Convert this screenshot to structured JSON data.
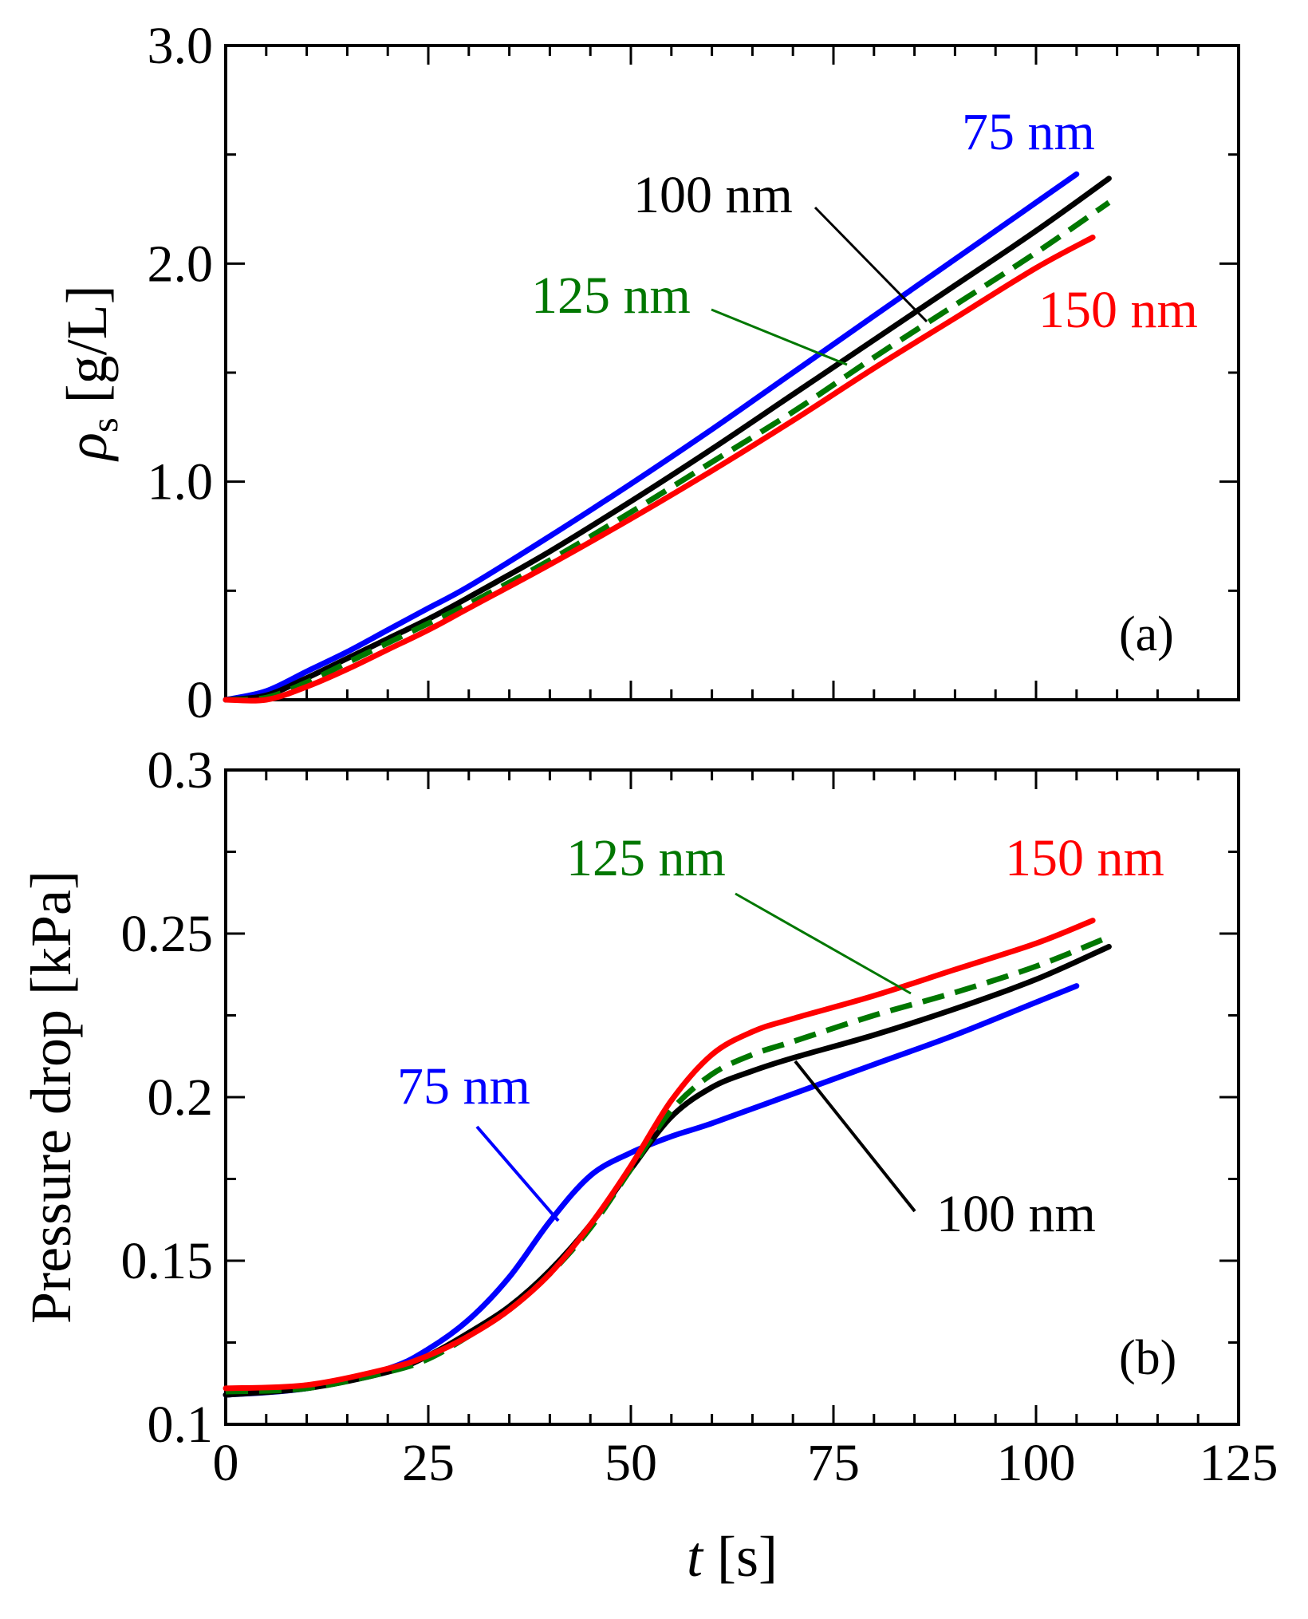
{
  "chart_data": [
    {
      "type": "line",
      "panel_tag": "(a)",
      "ylabel_symbol": "ρ",
      "ylabel_sub": "s",
      "ylabel_unit": " [g/L]",
      "xlim": [
        0,
        125
      ],
      "ylim": [
        0,
        3.0
      ],
      "yticks": [
        0,
        1.0,
        2.0,
        3.0
      ],
      "ytick_labels": [
        "0",
        "1.0",
        "2.0",
        "3.0"
      ],
      "series": [
        {
          "name": "75 nm",
          "color": "#0000ff",
          "dashed": false,
          "x": [
            0,
            5,
            10,
            15,
            20,
            25,
            30,
            40,
            50,
            60,
            70,
            80,
            90,
            100,
            105
          ],
          "y": [
            0,
            0.04,
            0.13,
            0.22,
            0.32,
            0.42,
            0.52,
            0.75,
            0.99,
            1.24,
            1.5,
            1.76,
            2.02,
            2.28,
            2.41
          ]
        },
        {
          "name": "100 nm",
          "color": "#000000",
          "dashed": false,
          "x": [
            0,
            5,
            10,
            15,
            20,
            25,
            30,
            40,
            50,
            60,
            70,
            80,
            90,
            100,
            109
          ],
          "y": [
            0,
            0.02,
            0.1,
            0.19,
            0.28,
            0.37,
            0.47,
            0.68,
            0.91,
            1.15,
            1.4,
            1.65,
            1.9,
            2.15,
            2.39
          ]
        },
        {
          "name": "125 nm",
          "color": "#007700",
          "dashed": true,
          "x": [
            0,
            5,
            10,
            15,
            20,
            25,
            30,
            40,
            50,
            60,
            70,
            80,
            90,
            100,
            109
          ],
          "y": [
            0,
            0.01,
            0.08,
            0.17,
            0.26,
            0.35,
            0.44,
            0.64,
            0.86,
            1.09,
            1.32,
            1.57,
            1.81,
            2.05,
            2.28
          ]
        },
        {
          "name": "150 nm",
          "color": "#ff0000",
          "dashed": false,
          "x": [
            0,
            5,
            10,
            15,
            20,
            25,
            30,
            40,
            50,
            60,
            70,
            80,
            90,
            100,
            107
          ],
          "y": [
            0,
            0.0,
            0.06,
            0.14,
            0.23,
            0.32,
            0.42,
            0.62,
            0.83,
            1.05,
            1.28,
            1.52,
            1.75,
            1.98,
            2.12
          ]
        }
      ],
      "labels": [
        {
          "text": "75 nm",
          "color": "#0000ff"
        },
        {
          "text": "100 nm",
          "color": "#000000"
        },
        {
          "text": "125 nm",
          "color": "#007700"
        },
        {
          "text": "150 nm",
          "color": "#ff0000"
        }
      ]
    },
    {
      "type": "line",
      "panel_tag": "(b)",
      "ylabel": "Pressure drop [kPa]",
      "xlabel_symbol": "t",
      "xlabel_unit": " [s]",
      "xlim": [
        0,
        125
      ],
      "ylim": [
        0.1,
        0.3
      ],
      "xticks": [
        0,
        25,
        50,
        75,
        100,
        125
      ],
      "xtick_labels": [
        "0",
        "25",
        "50",
        "75",
        "100",
        "125"
      ],
      "yticks": [
        0.1,
        0.15,
        0.2,
        0.25,
        0.3
      ],
      "ytick_labels": [
        "0.1",
        "0.15",
        "0.2",
        "0.25",
        "0.3"
      ],
      "series": [
        {
          "name": "75 nm",
          "color": "#0000ff",
          "dashed": false,
          "x": [
            0,
            10,
            20,
            25,
            30,
            35,
            40,
            45,
            50,
            55,
            60,
            70,
            80,
            90,
            100,
            105
          ],
          "y": [
            0.109,
            0.111,
            0.117,
            0.123,
            0.132,
            0.145,
            0.162,
            0.176,
            0.183,
            0.188,
            0.192,
            0.201,
            0.21,
            0.219,
            0.229,
            0.234
          ]
        },
        {
          "name": "100 nm",
          "color": "#000000",
          "dashed": false,
          "x": [
            0,
            10,
            20,
            25,
            30,
            35,
            40,
            45,
            50,
            55,
            60,
            65,
            70,
            80,
            90,
            100,
            109
          ],
          "y": [
            0.109,
            0.111,
            0.116,
            0.121,
            0.128,
            0.136,
            0.147,
            0.161,
            0.178,
            0.194,
            0.203,
            0.208,
            0.212,
            0.219,
            0.227,
            0.236,
            0.246
          ]
        },
        {
          "name": "125 nm",
          "color": "#007700",
          "dashed": true,
          "x": [
            0,
            10,
            20,
            25,
            30,
            35,
            40,
            45,
            50,
            55,
            60,
            65,
            70,
            80,
            90,
            100,
            109
          ],
          "y": [
            0.11,
            0.111,
            0.116,
            0.12,
            0.127,
            0.135,
            0.146,
            0.16,
            0.178,
            0.196,
            0.207,
            0.213,
            0.217,
            0.225,
            0.232,
            0.24,
            0.249
          ]
        },
        {
          "name": "150 nm",
          "color": "#ff0000",
          "dashed": false,
          "x": [
            0,
            10,
            20,
            25,
            30,
            35,
            40,
            45,
            50,
            55,
            60,
            65,
            70,
            80,
            90,
            100,
            107
          ],
          "y": [
            0.111,
            0.112,
            0.117,
            0.121,
            0.127,
            0.135,
            0.146,
            0.161,
            0.179,
            0.199,
            0.213,
            0.22,
            0.224,
            0.231,
            0.239,
            0.247,
            0.254
          ]
        }
      ],
      "labels": [
        {
          "text": "75 nm",
          "color": "#0000ff"
        },
        {
          "text": "100 nm",
          "color": "#000000"
        },
        {
          "text": "125 nm",
          "color": "#007700"
        },
        {
          "text": "150 nm",
          "color": "#ff0000"
        }
      ]
    }
  ]
}
